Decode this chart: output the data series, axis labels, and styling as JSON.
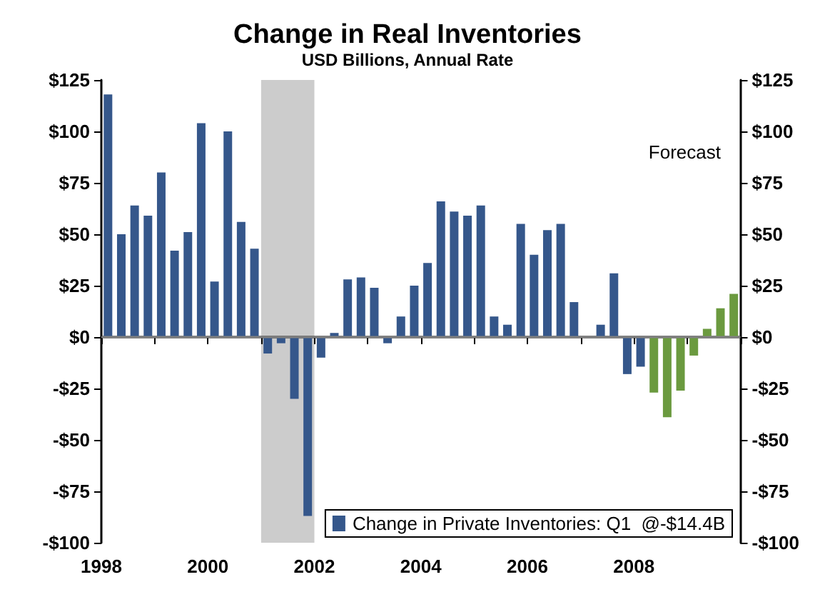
{
  "chart_data": {
    "type": "bar",
    "title": "Change in Real Inventories",
    "subtitle": "USD Billions, Annual Rate",
    "x": [
      1998.125,
      1998.375,
      1998.625,
      1998.875,
      1999.125,
      1999.375,
      1999.625,
      1999.875,
      2000.125,
      2000.375,
      2000.625,
      2000.875,
      2001.125,
      2001.375,
      2001.625,
      2001.875,
      2002.125,
      2002.375,
      2002.625,
      2002.875,
      2003.125,
      2003.375,
      2003.625,
      2003.875,
      2004.125,
      2004.375,
      2004.625,
      2004.875,
      2005.125,
      2005.375,
      2005.625,
      2005.875,
      2006.125,
      2006.375,
      2006.625,
      2006.875,
      2007.125,
      2007.375,
      2007.625,
      2007.875,
      2008.125,
      2008.375,
      2008.625,
      2008.875,
      2009.125,
      2009.375,
      2009.625,
      2009.875
    ],
    "series": [
      {
        "name": "Change in Private Inventories: Q1  @-$14.4B",
        "color": "#35578b",
        "values": [
          118,
          50,
          64,
          59,
          80,
          42,
          51,
          104,
          27,
          100,
          56,
          43,
          -8,
          -3,
          -30,
          -87,
          -10,
          2,
          28,
          29,
          24,
          -3,
          10,
          25,
          36,
          66,
          61,
          59,
          64,
          10,
          6,
          55,
          40,
          52,
          55,
          17,
          0,
          6,
          31,
          -18,
          -14.4,
          null,
          null,
          null,
          null,
          null,
          null,
          null
        ]
      },
      {
        "color": "#6b9a3f",
        "values": [
          null,
          null,
          null,
          null,
          null,
          null,
          null,
          null,
          null,
          null,
          null,
          null,
          null,
          null,
          null,
          null,
          null,
          null,
          null,
          null,
          null,
          null,
          null,
          null,
          null,
          null,
          null,
          null,
          null,
          null,
          null,
          null,
          null,
          null,
          null,
          null,
          null,
          null,
          null,
          null,
          null,
          -27,
          -39,
          -26,
          -9,
          4,
          14,
          21
        ]
      }
    ],
    "xlim": [
      1998,
      2010
    ],
    "xticks": [
      1998,
      {
        "value": 1999,
        "label": null
      },
      2000,
      {
        "value": 2001,
        "label": null
      },
      2002,
      {
        "value": 2003,
        "label": null
      },
      2004,
      {
        "value": 2005,
        "label": null
      },
      2006,
      {
        "value": 2007,
        "label": null
      },
      2008,
      {
        "value": 2009,
        "label": null
      },
      {
        "value": 2010,
        "label": null
      }
    ],
    "ylim": [
      -100,
      125
    ],
    "yticks": [
      {
        "value": -100,
        "label": "-$100"
      },
      {
        "value": -75,
        "label": "-$75"
      },
      {
        "value": -50,
        "label": "-$50"
      },
      {
        "value": -25,
        "label": "-$25"
      },
      {
        "value": 0,
        "label": "$0"
      },
      {
        "value": 25,
        "label": "$25"
      },
      {
        "value": 50,
        "label": "$50"
      },
      {
        "value": 75,
        "label": "$75"
      },
      {
        "value": 100,
        "label": "$100"
      },
      {
        "value": 125,
        "label": "$125"
      }
    ],
    "y2lim": [
      -100,
      125
    ],
    "y2ticks": [
      {
        "value": -100,
        "label": "-$100"
      },
      {
        "value": -75,
        "label": "-$75"
      },
      {
        "value": -50,
        "label": "-$50"
      },
      {
        "value": -25,
        "label": "-$25"
      },
      {
        "value": 0,
        "label": "$0"
      },
      {
        "value": 25,
        "label": "$25"
      },
      {
        "value": 50,
        "label": "$50"
      },
      {
        "value": 75,
        "label": "$75"
      },
      {
        "value": 100,
        "label": "$100"
      },
      {
        "value": 125,
        "label": "$125"
      }
    ],
    "bands": [
      {
        "axis": "x",
        "from": 2001,
        "to": 2002,
        "color": "#cccccc"
      }
    ],
    "annotations": [
      "Forecast"
    ],
    "ref_lines": [
      {
        "axis": "y",
        "value": 0,
        "color": "#808080"
      }
    ],
    "grid": false,
    "legend": "bottom right"
  }
}
